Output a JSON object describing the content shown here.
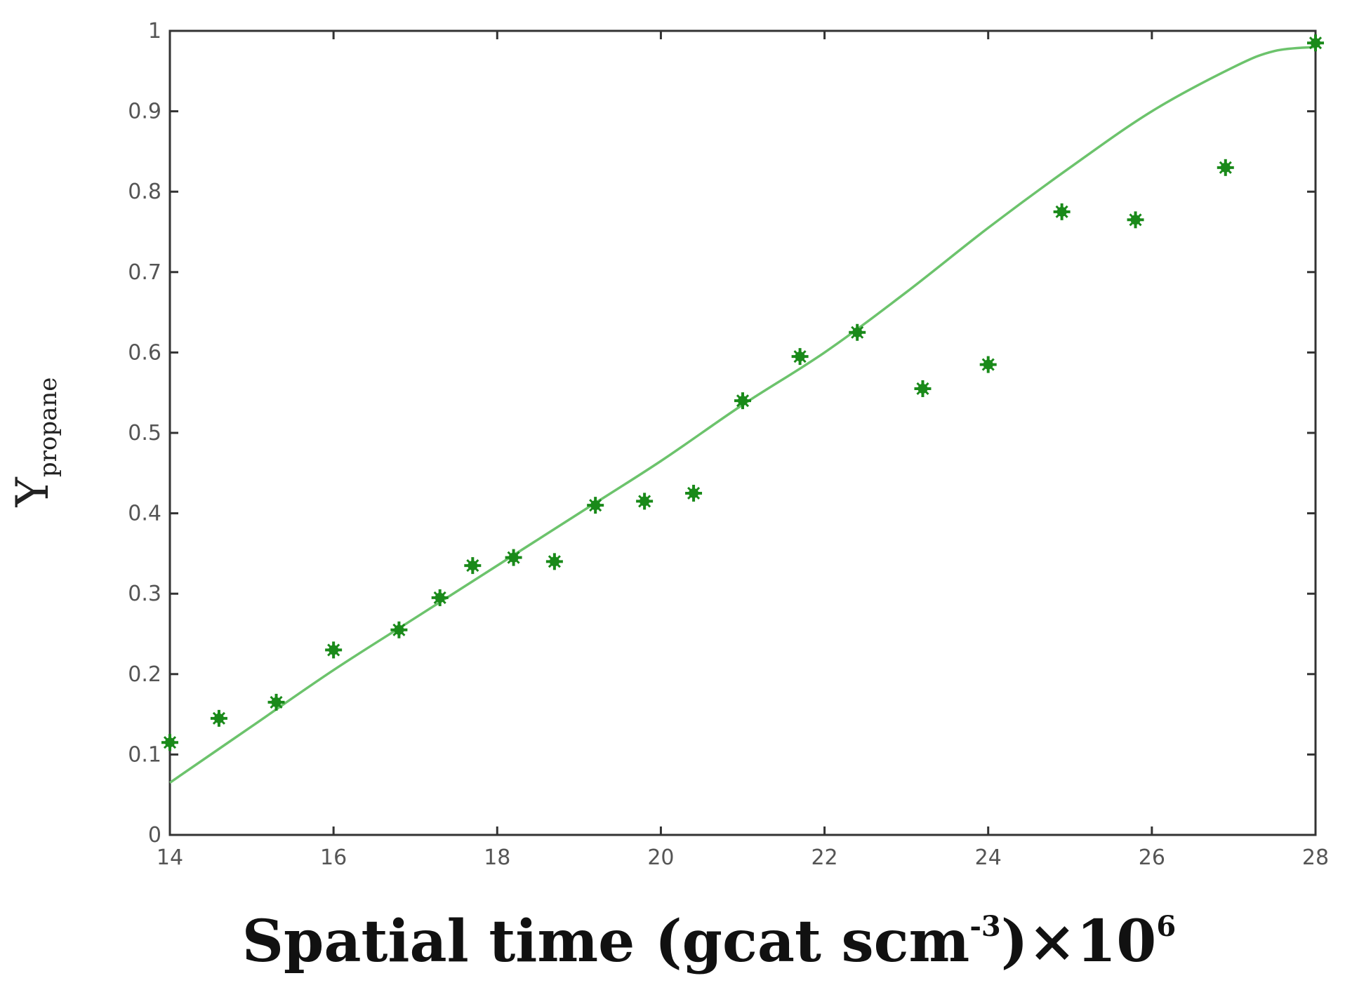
{
  "chart_data": {
    "type": "scatter",
    "title": "",
    "xlabel": {
      "main": "Spatial time (gcat scm",
      "exp1": "-3",
      "middle": ")×10",
      "exp2": "6"
    },
    "ylabel": {
      "main": "Y",
      "sub": "propane"
    },
    "xlim": [
      14,
      28
    ],
    "ylim": [
      0,
      1
    ],
    "grid": false,
    "legend": "none",
    "x_ticks": [
      "14",
      "16",
      "18",
      "20",
      "22",
      "24",
      "26",
      "28"
    ],
    "y_ticks": [
      "0",
      "0.1",
      "0.2",
      "0.3",
      "0.4",
      "0.5",
      "0.6",
      "0.7",
      "0.8",
      "0.9",
      "1"
    ],
    "series": [
      {
        "kind": "markers",
        "color": "#1a8a1a",
        "x": [
          14.0,
          14.6,
          15.3,
          16.0,
          16.8,
          17.3,
          17.7,
          18.2,
          18.7,
          19.2,
          19.8,
          20.4,
          21.0,
          21.7,
          22.4,
          23.2,
          24.0,
          24.9,
          25.8,
          26.9,
          28.0
        ],
        "y": [
          0.115,
          0.145,
          0.165,
          0.23,
          0.255,
          0.295,
          0.335,
          0.345,
          0.34,
          0.41,
          0.415,
          0.425,
          0.54,
          0.595,
          0.625,
          0.555,
          0.585,
          0.775,
          0.765,
          0.83,
          0.985
        ]
      },
      {
        "kind": "line",
        "color": "#6cc36c",
        "x": [
          14.0,
          15.0,
          16.0,
          17.0,
          18.0,
          19.0,
          20.0,
          21.0,
          22.0,
          23.0,
          24.0,
          25.0,
          26.0,
          27.0,
          27.5,
          28.0
        ],
        "y": [
          0.065,
          0.135,
          0.205,
          0.27,
          0.335,
          0.4,
          0.465,
          0.535,
          0.6,
          0.675,
          0.755,
          0.83,
          0.9,
          0.955,
          0.975,
          0.98
        ]
      }
    ]
  }
}
